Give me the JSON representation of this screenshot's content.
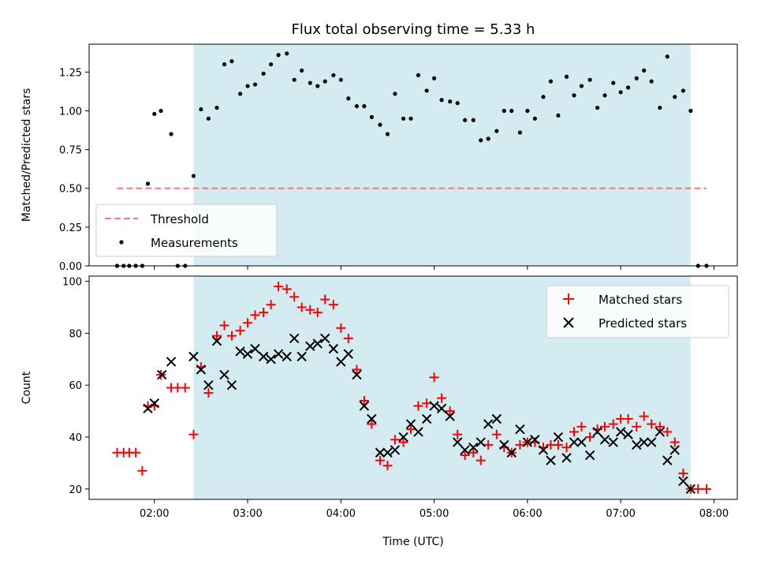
{
  "chart_data": [
    {
      "type": "scatter",
      "title": "Flux total observing time = 5.33 h",
      "xlabel": "",
      "ylabel": "Matched/Predicted stars",
      "xlim": [
        1.3,
        8.25
      ],
      "ylim": [
        0.0,
        1.43
      ],
      "yticks": [
        0.0,
        0.25,
        0.5,
        0.75,
        1.0,
        1.25
      ],
      "ytick_labels": [
        "0.00",
        "0.25",
        "0.50",
        "0.75",
        "1.00",
        "1.25"
      ],
      "xticks": [
        2,
        3,
        4,
        5,
        6,
        7,
        8
      ],
      "shaded_range": [
        2.42,
        7.75
      ],
      "threshold": {
        "name": "Threshold",
        "value": 0.5,
        "x_range": [
          1.6,
          7.92
        ],
        "color": "#f07a7a"
      },
      "legend": {
        "placement": "lower-left",
        "entries": [
          "Threshold",
          "Measurements"
        ]
      },
      "series": [
        {
          "name": "Measurements",
          "color": "#000000",
          "x": [
            1.6,
            1.67,
            1.73,
            1.8,
            1.87,
            1.93,
            2.0,
            2.07,
            2.18,
            2.25,
            2.33,
            2.42,
            2.5,
            2.58,
            2.67,
            2.75,
            2.83,
            2.92,
            3.0,
            3.08,
            3.17,
            3.25,
            3.33,
            3.42,
            3.5,
            3.58,
            3.67,
            3.75,
            3.83,
            3.92,
            4.0,
            4.08,
            4.17,
            4.25,
            4.33,
            4.42,
            4.5,
            4.58,
            4.67,
            4.75,
            4.83,
            4.92,
            5.0,
            5.08,
            5.17,
            5.25,
            5.33,
            5.42,
            5.5,
            5.58,
            5.67,
            5.75,
            5.83,
            5.92,
            6.0,
            6.08,
            6.17,
            6.25,
            6.33,
            6.42,
            6.5,
            6.58,
            6.67,
            6.75,
            6.83,
            6.92,
            7.0,
            7.08,
            7.17,
            7.25,
            7.33,
            7.42,
            7.5,
            7.58,
            7.67,
            7.75,
            7.83,
            7.92
          ],
          "y": [
            0,
            0,
            0,
            0,
            0,
            0.53,
            0.98,
            1.0,
            0.85,
            0,
            0,
            0.58,
            1.01,
            0.95,
            1.02,
            1.3,
            1.32,
            1.11,
            1.16,
            1.17,
            1.24,
            1.3,
            1.36,
            1.37,
            1.2,
            1.26,
            1.18,
            1.16,
            1.19,
            1.23,
            1.2,
            1.08,
            1.03,
            1.03,
            0.96,
            0.91,
            0.85,
            1.11,
            0.95,
            0.95,
            1.23,
            1.13,
            1.21,
            1.07,
            1.06,
            1.05,
            0.94,
            0.94,
            0.81,
            0.82,
            0.87,
            1.0,
            1.0,
            0.86,
            1.0,
            0.95,
            1.09,
            1.19,
            0.97,
            1.22,
            1.1,
            1.16,
            1.2,
            1.02,
            1.1,
            1.18,
            1.12,
            1.15,
            1.21,
            1.26,
            1.19,
            1.02,
            1.35,
            1.09,
            1.13,
            1.0,
            0,
            0
          ]
        }
      ]
    },
    {
      "type": "scatter",
      "title": "",
      "xlabel": "Time (UTC)",
      "ylabel": "Count",
      "xlim": [
        1.3,
        8.25
      ],
      "ylim": [
        16,
        102
      ],
      "yticks": [
        20,
        40,
        60,
        80,
        100
      ],
      "ytick_labels": [
        "20",
        "40",
        "60",
        "80",
        "100"
      ],
      "xticks": [
        2,
        3,
        4,
        5,
        6,
        7,
        8
      ],
      "xtick_labels": [
        "02:00",
        "03:00",
        "04:00",
        "05:00",
        "06:00",
        "07:00",
        "08:00"
      ],
      "shaded_range": [
        2.42,
        7.75
      ],
      "legend": {
        "placement": "upper-right",
        "entries": [
          "Matched stars",
          "Predicted stars"
        ]
      },
      "series": [
        {
          "name": "Matched stars",
          "marker": "plus",
          "color": "#ff0000",
          "x": [
            1.6,
            1.67,
            1.73,
            1.8,
            1.87,
            1.93,
            2.0,
            2.07,
            2.18,
            2.25,
            2.33,
            2.42,
            2.5,
            2.58,
            2.67,
            2.75,
            2.83,
            2.92,
            3.0,
            3.08,
            3.17,
            3.25,
            3.33,
            3.42,
            3.5,
            3.58,
            3.67,
            3.75,
            3.83,
            3.92,
            4.0,
            4.08,
            4.17,
            4.25,
            4.33,
            4.42,
            4.5,
            4.58,
            4.67,
            4.75,
            4.83,
            4.92,
            5.0,
            5.08,
            5.17,
            5.25,
            5.33,
            5.42,
            5.5,
            5.58,
            5.67,
            5.75,
            5.83,
            5.92,
            6.0,
            6.08,
            6.17,
            6.25,
            6.33,
            6.42,
            6.5,
            6.58,
            6.67,
            6.75,
            6.83,
            6.92,
            7.0,
            7.08,
            7.17,
            7.25,
            7.33,
            7.42,
            7.5,
            7.58,
            7.67,
            7.75,
            7.83,
            7.92
          ],
          "y": [
            34,
            34,
            34,
            34,
            27,
            52,
            52,
            64,
            59,
            59,
            59,
            41,
            67,
            57,
            79,
            83,
            79,
            81,
            84,
            87,
            88,
            91,
            98,
            97,
            94,
            90,
            89,
            88,
            93,
            91,
            82,
            78,
            66,
            54,
            45,
            31,
            29,
            39,
            38,
            43,
            52,
            53,
            63,
            55,
            50,
            41,
            33,
            34,
            31,
            37,
            41,
            36,
            34,
            37,
            38,
            38,
            36,
            37,
            37,
            36,
            42,
            44,
            40,
            43,
            44,
            45,
            47,
            47,
            44,
            48,
            45,
            44,
            42,
            38,
            26,
            20,
            20,
            20
          ]
        },
        {
          "name": "Predicted stars",
          "marker": "x",
          "color": "#000000",
          "x": [
            1.93,
            2.0,
            2.08,
            2.18,
            2.42,
            2.5,
            2.58,
            2.67,
            2.75,
            2.83,
            2.92,
            3.0,
            3.08,
            3.17,
            3.25,
            3.33,
            3.42,
            3.5,
            3.58,
            3.67,
            3.75,
            3.83,
            3.92,
            4.0,
            4.08,
            4.17,
            4.25,
            4.33,
            4.42,
            4.5,
            4.58,
            4.67,
            4.75,
            4.83,
            4.92,
            5.0,
            5.08,
            5.17,
            5.25,
            5.33,
            5.42,
            5.5,
            5.58,
            5.67,
            5.75,
            5.83,
            5.92,
            6.0,
            6.08,
            6.17,
            6.25,
            6.33,
            6.42,
            6.5,
            6.58,
            6.67,
            6.75,
            6.83,
            6.92,
            7.0,
            7.08,
            7.17,
            7.25,
            7.33,
            7.42,
            7.5,
            7.58,
            7.67,
            7.75
          ],
          "y": [
            51,
            53,
            64,
            69,
            71,
            66,
            60,
            77,
            64,
            60,
            73,
            72,
            74,
            71,
            70,
            72,
            71,
            78,
            71,
            75,
            76,
            78,
            74,
            69,
            72,
            64,
            52,
            47,
            34,
            34,
            35,
            40,
            45,
            42,
            47,
            52,
            51,
            48,
            38,
            35,
            36,
            38,
            45,
            47,
            37,
            34,
            43,
            38,
            39,
            35,
            31,
            40,
            32,
            38,
            38,
            33,
            42,
            39,
            38,
            42,
            41,
            37,
            38,
            38,
            42,
            31,
            35,
            23,
            20
          ]
        }
      ]
    }
  ]
}
